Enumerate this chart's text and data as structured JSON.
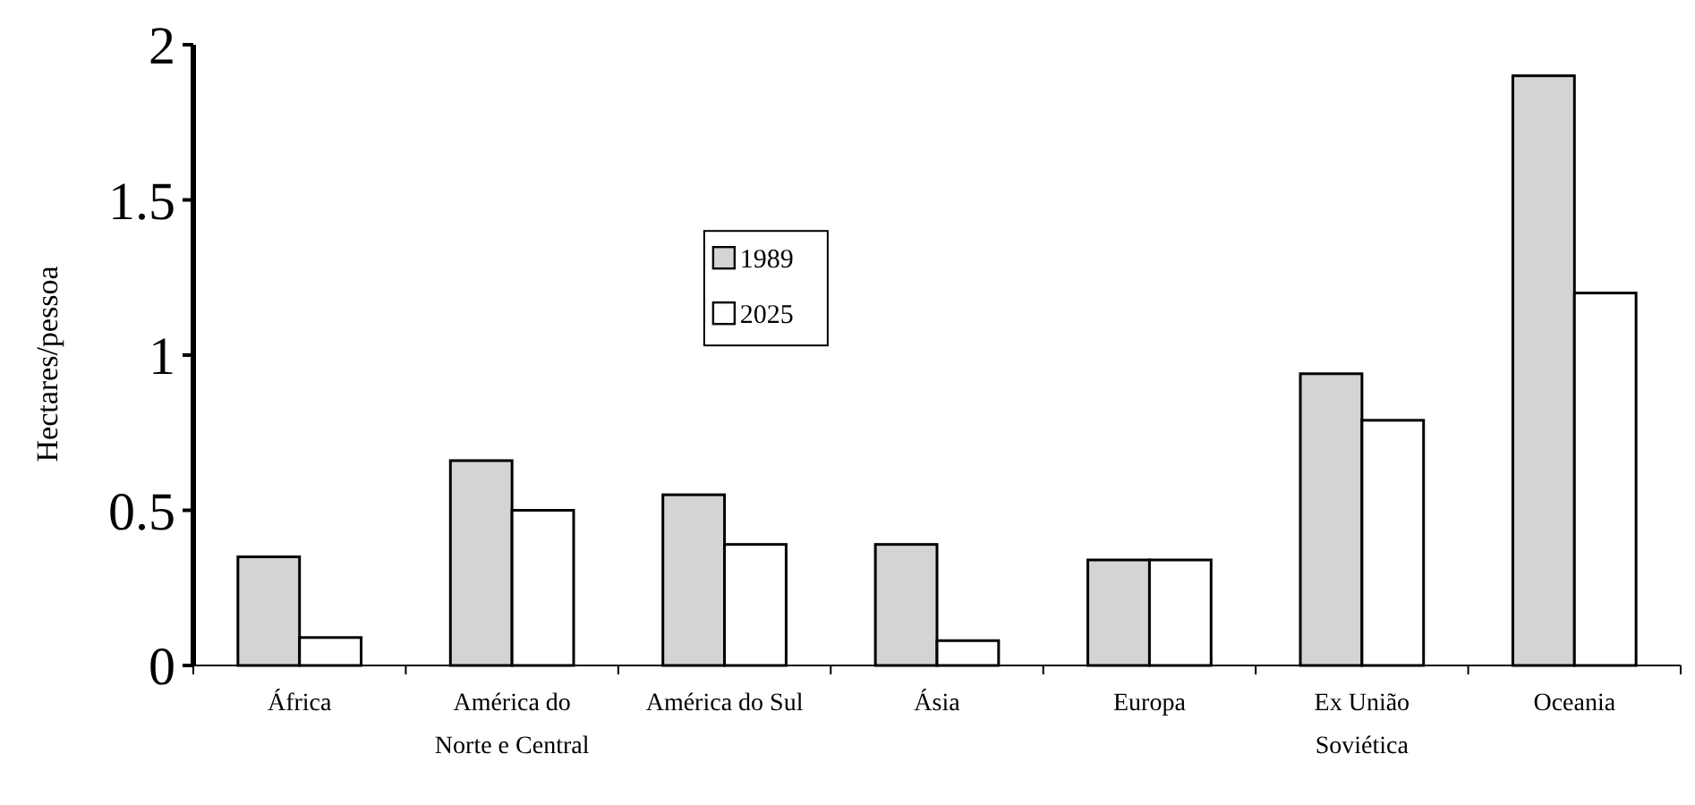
{
  "chart_data": {
    "type": "bar",
    "ylabel": "Hectares/pessoa",
    "categories": [
      "África",
      "América do Norte e Central",
      "América do Sul",
      "Ásia",
      "Europa",
      "Ex União Soviética",
      "Oceania"
    ],
    "series": [
      {
        "name": "1989",
        "color": "#d4d4d4",
        "values": [
          0.35,
          0.66,
          0.55,
          0.39,
          0.34,
          0.94,
          1.9
        ]
      },
      {
        "name": "2025",
        "color": "#ffffff",
        "values": [
          0.09,
          0.5,
          0.39,
          0.08,
          0.34,
          0.79,
          1.2
        ]
      }
    ],
    "ylim": [
      0,
      2
    ],
    "yticks": [
      0,
      0.5,
      1,
      1.5,
      2
    ],
    "legend": "top"
  }
}
